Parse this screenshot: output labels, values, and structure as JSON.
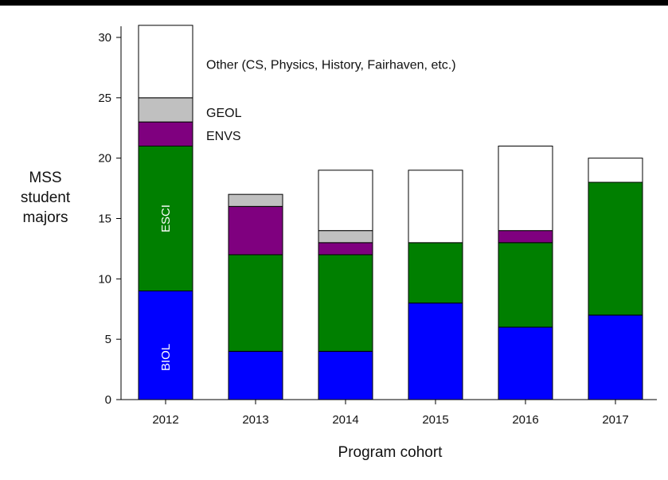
{
  "chart_data": {
    "type": "bar",
    "stacked": true,
    "categories": [
      "2012",
      "2013",
      "2014",
      "2015",
      "2016",
      "2017"
    ],
    "series": [
      {
        "name": "BIOL",
        "color": "#0000ff",
        "values": [
          9,
          4,
          4,
          8,
          6,
          7
        ]
      },
      {
        "name": "ESCI",
        "color": "#007f00",
        "values": [
          12,
          8,
          8,
          5,
          7,
          11
        ]
      },
      {
        "name": "ENVS",
        "color": "#7f007f",
        "values": [
          2,
          4,
          1,
          0,
          1,
          0
        ]
      },
      {
        "name": "GEOL",
        "color": "#c0c0c0",
        "values": [
          2,
          1,
          1,
          0,
          0,
          0
        ]
      },
      {
        "name": "Other (CS, Physics, History, Fairhaven, etc.)",
        "color": "#ffffff",
        "values": [
          6,
          0,
          5,
          6,
          7,
          2
        ]
      }
    ],
    "ylim": [
      0,
      31
    ],
    "yticks": [
      0,
      5,
      10,
      15,
      20,
      25,
      30
    ],
    "ylabel_lines": [
      "MSS",
      "student",
      "majors"
    ],
    "xlabel": "Program cohort",
    "grid": false,
    "legend": "labels placed beside the 2012 bar; BIOL and ESCI written inside it"
  }
}
